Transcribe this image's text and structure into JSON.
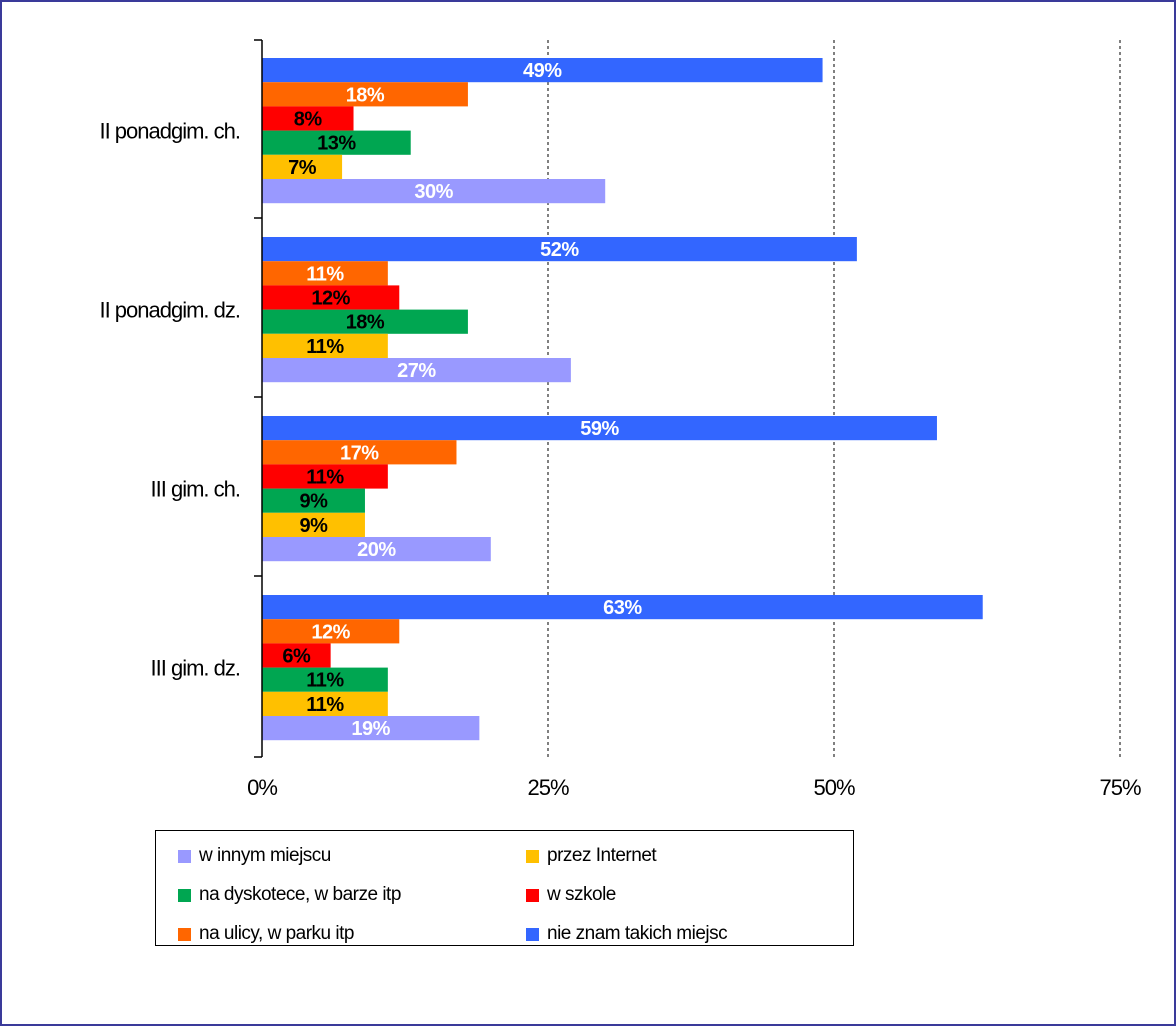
{
  "chart_data": {
    "type": "bar",
    "orientation": "horizontal",
    "categories": [
      "II ponadgim. ch.",
      "II ponadgim. dz.",
      "III gim. ch.",
      "III gim. dz."
    ],
    "series": [
      {
        "name": "nie znam takich miejsc",
        "color": "#3366ff",
        "label_color": "#ffffff",
        "values": [
          49,
          52,
          59,
          63
        ]
      },
      {
        "name": "na ulicy, w parku itp",
        "color": "#ff6600",
        "label_color": "#ffffff",
        "values": [
          18,
          11,
          17,
          12
        ]
      },
      {
        "name": "w szkole",
        "color": "#ff0000",
        "label_color": "#000000",
        "values": [
          8,
          12,
          11,
          6
        ]
      },
      {
        "name": "na dyskotece, w barze itp",
        "color": "#00a651",
        "label_color": "#000000",
        "values": [
          13,
          18,
          9,
          11
        ]
      },
      {
        "name": "przez Internet",
        "color": "#ffc000",
        "label_color": "#000000",
        "values": [
          7,
          11,
          9,
          11
        ]
      },
      {
        "name": "w innym miejscu",
        "color": "#9999ff",
        "label_color": "#ffffff",
        "values": [
          30,
          27,
          20,
          19
        ]
      }
    ],
    "xlim": [
      0,
      75
    ],
    "ticks": [
      0,
      25,
      50,
      75
    ],
    "tick_labels": [
      "0%",
      "25%",
      "50%",
      "75%"
    ],
    "grid": "vertical dashed at 25%, 50%, 75%",
    "legend": {
      "placement": "bottom",
      "layout_order": [
        "w innym miejscu",
        "przez Internet",
        "na dyskotece, w barze itp",
        "w szkole",
        "na ulicy, w parku itp",
        "nie znam takich miejsc"
      ]
    }
  }
}
